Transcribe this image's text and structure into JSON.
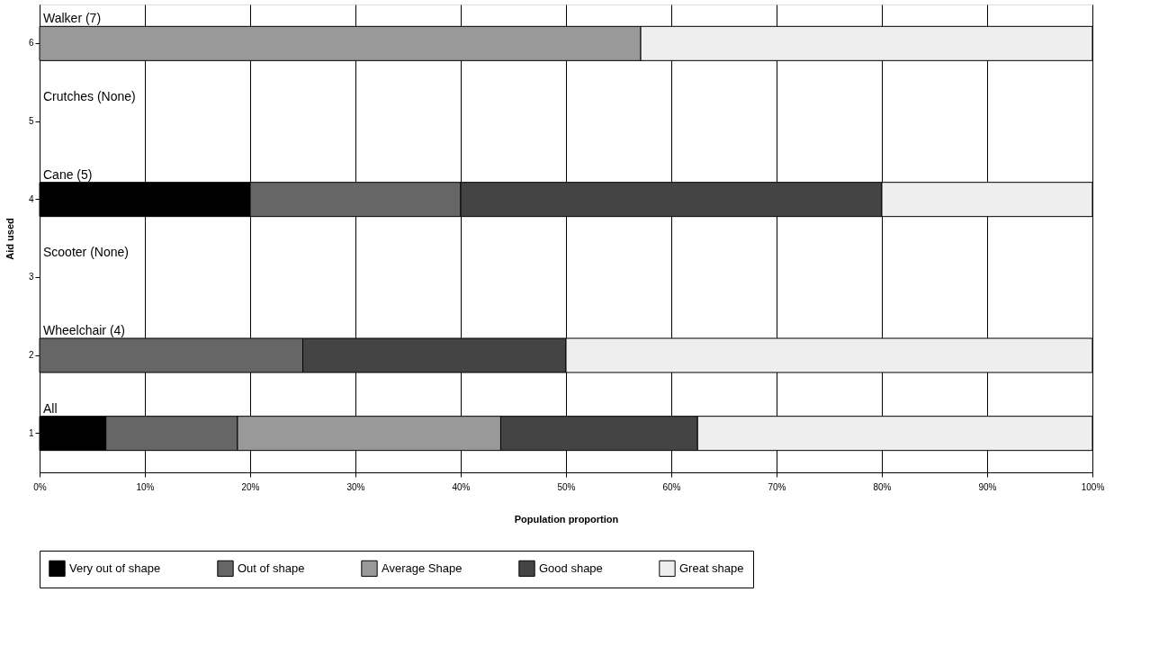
{
  "chart_data": {
    "type": "bar",
    "orientation": "horizontal",
    "stacked": true,
    "xlabel": "Population proportion",
    "ylabel": "Aid used",
    "categories": [
      "6",
      "5",
      "4",
      "3",
      "2",
      "1"
    ],
    "series": [
      {
        "name": "Very out of shape",
        "color": "#000000",
        "values": [
          0,
          null,
          20,
          null,
          0,
          6.3
        ]
      },
      {
        "name": "Out of shape",
        "color": "#666666",
        "values": [
          0,
          null,
          20,
          null,
          25,
          12.5
        ]
      },
      {
        "name": "Average Shape",
        "color": "#999999",
        "values": [
          57.1,
          null,
          0,
          null,
          0,
          25
        ]
      },
      {
        "name": "Good shape",
        "color": "#444444",
        "values": [
          0,
          null,
          40,
          null,
          25,
          18.7
        ]
      },
      {
        "name": "Great shape",
        "color": "#eeeeee",
        "values": [
          42.9,
          null,
          20,
          null,
          50,
          37.5
        ]
      }
    ],
    "xlim": [
      0,
      100
    ],
    "xticks": [
      {
        "value": 0,
        "label": "0%"
      },
      {
        "value": 10,
        "label": "10%"
      },
      {
        "value": 20,
        "label": "20%"
      },
      {
        "value": 30,
        "label": "30%"
      },
      {
        "value": 40,
        "label": "40%"
      },
      {
        "value": 50,
        "label": "50%"
      },
      {
        "value": 60,
        "label": "60%"
      },
      {
        "value": 70,
        "label": "70%"
      },
      {
        "value": 80,
        "label": "80%"
      },
      {
        "value": 90,
        "label": "90%"
      },
      {
        "value": 100,
        "label": "100%"
      }
    ],
    "annotations": [
      "Walker (7)",
      "Crutches (None)",
      "Cane (5)",
      "Scooter (None)",
      "Wheelchair (4)",
      "All"
    ],
    "grid": "x",
    "legend": "bottom"
  }
}
